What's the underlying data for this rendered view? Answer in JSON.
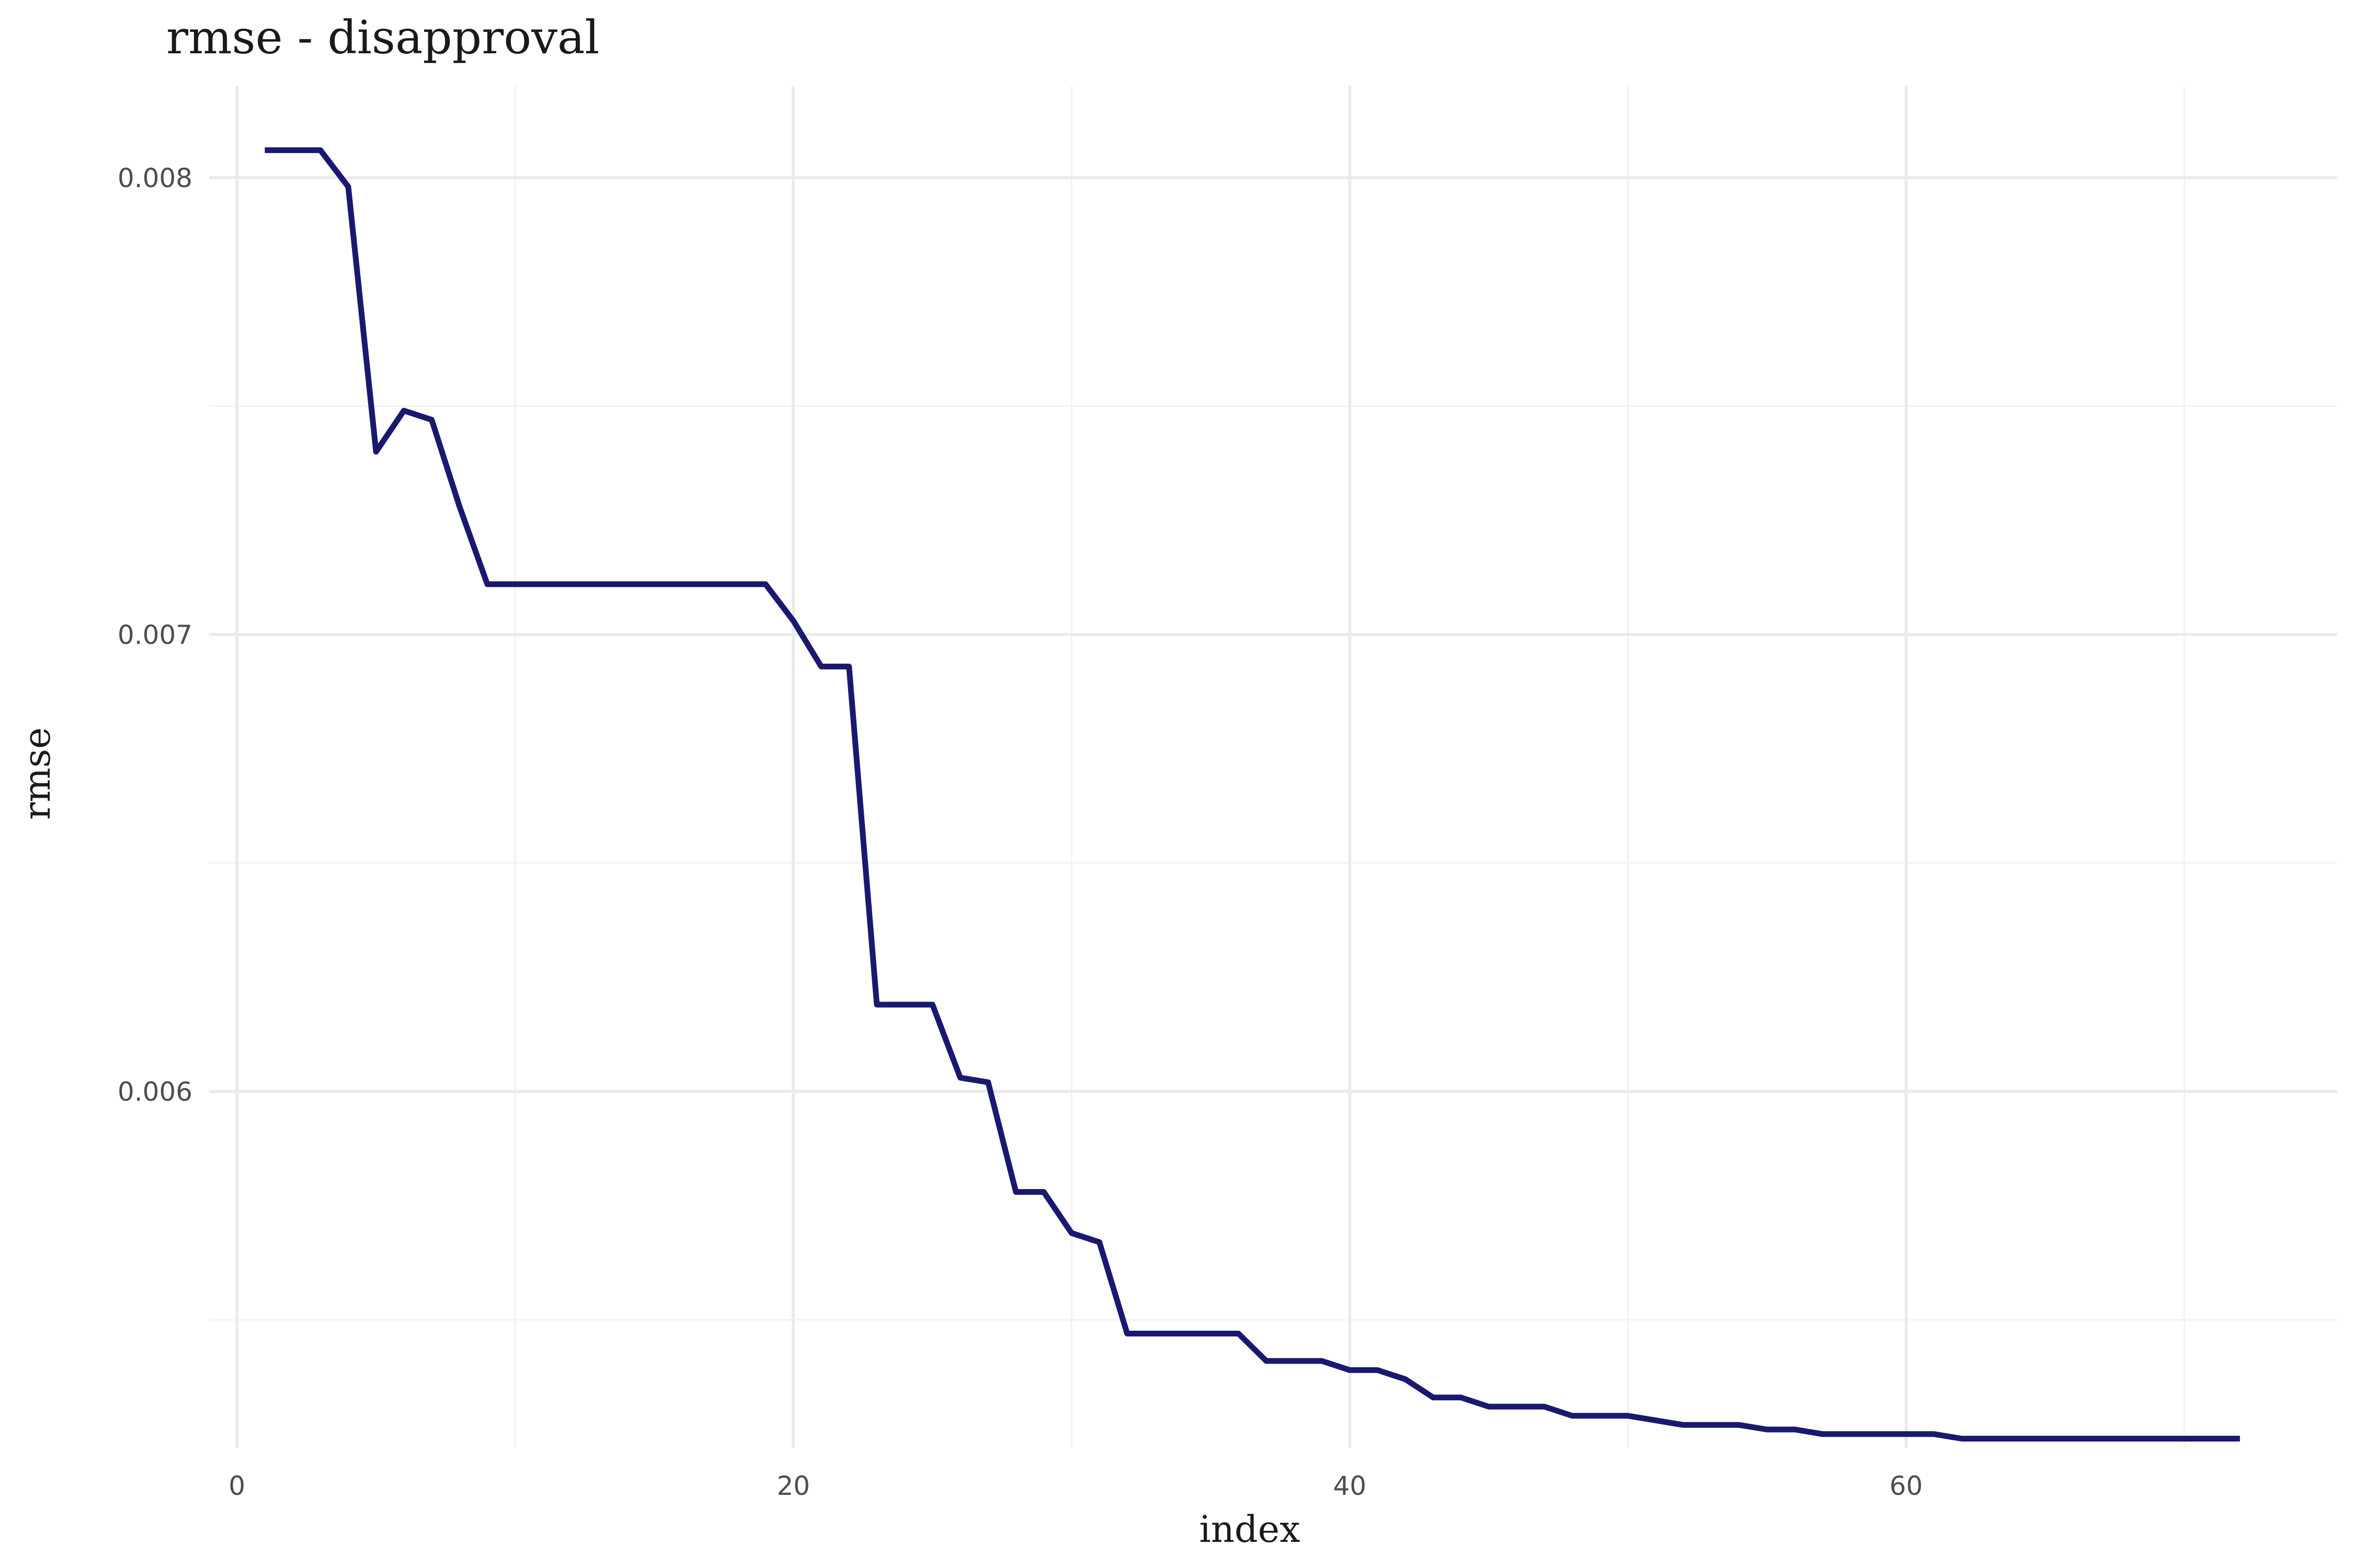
{
  "chart_data": {
    "type": "line",
    "title": "rmse - disapproval",
    "xlabel": "index",
    "ylabel": "rmse",
    "xlim": [
      -1,
      75.5
    ],
    "ylim": [
      0.00522,
      0.0082
    ],
    "x_ticks": [
      0,
      20,
      40,
      60
    ],
    "x_tick_labels": [
      "0",
      "20",
      "40",
      "60"
    ],
    "x_minor_ticks": [
      10,
      30,
      50,
      70
    ],
    "y_ticks": [
      0.006,
      0.007,
      0.008
    ],
    "y_tick_labels": [
      "0.006",
      "0.007",
      "0.008"
    ],
    "y_minor_ticks": [
      0.0055,
      0.0065,
      0.0075
    ],
    "grid": true,
    "legend": "none",
    "line_color": "#191970",
    "series": [
      {
        "x": [
          1,
          2,
          3,
          4,
          5,
          6,
          7,
          8,
          9,
          10,
          11,
          12,
          13,
          14,
          15,
          16,
          17,
          18,
          19,
          20,
          21,
          22,
          23,
          24,
          25,
          26,
          27,
          28,
          29,
          30,
          31,
          32,
          33,
          34,
          35,
          36,
          37,
          38,
          39,
          40,
          41,
          42,
          43,
          44,
          45,
          46,
          47,
          48,
          49,
          50,
          51,
          52,
          53,
          54,
          55,
          56,
          57,
          58,
          59,
          60,
          61,
          62,
          63,
          64,
          65,
          66,
          67,
          68,
          69,
          70,
          71,
          72
        ],
        "y": [
          0.00806,
          0.00806,
          0.00806,
          0.00798,
          0.0074,
          0.00749,
          0.00747,
          0.00728,
          0.00711,
          0.00711,
          0.00711,
          0.00711,
          0.00711,
          0.00711,
          0.00711,
          0.00711,
          0.00711,
          0.00711,
          0.00711,
          0.00703,
          0.00693,
          0.00693,
          0.00619,
          0.00619,
          0.00619,
          0.00603,
          0.00602,
          0.00578,
          0.00578,
          0.00569,
          0.00567,
          0.00547,
          0.00547,
          0.00547,
          0.00547,
          0.00547,
          0.00541,
          0.00541,
          0.00541,
          0.00539,
          0.00539,
          0.00537,
          0.00533,
          0.00533,
          0.00531,
          0.00531,
          0.00531,
          0.00529,
          0.00529,
          0.00529,
          0.00528,
          0.00527,
          0.00527,
          0.00527,
          0.00526,
          0.00526,
          0.00525,
          0.00525,
          0.00525,
          0.00525,
          0.00525,
          0.00524,
          0.00524,
          0.00524,
          0.00524,
          0.00524,
          0.00524,
          0.00524,
          0.00524,
          0.00524,
          0.00524,
          0.00524
        ]
      }
    ]
  }
}
